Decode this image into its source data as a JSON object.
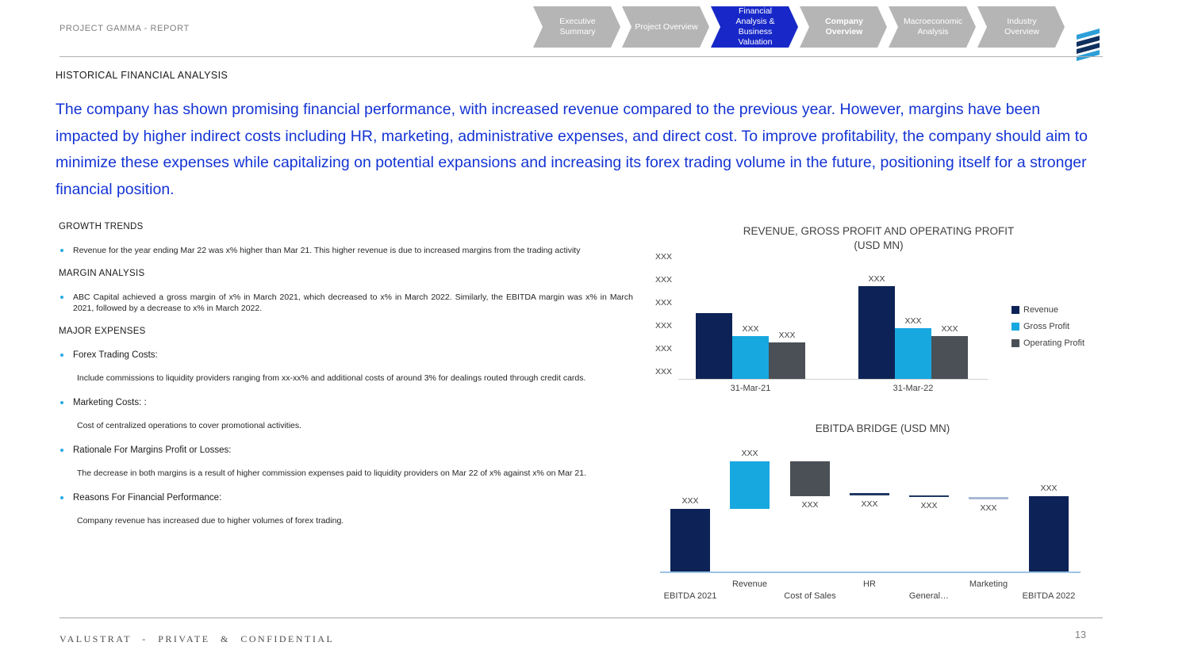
{
  "page": {
    "header_label": "PROJECT GAMMA - REPORT",
    "section_title": "HISTORICAL FINANCIAL ANALYSIS",
    "intro": "The company has shown promising financial performance, with increased revenue compared to the previous year. However, margins have been impacted by higher indirect costs including HR, marketing, administrative expenses, and direct cost. To improve profitability, the company should aim to minimize these expenses while capitalizing on potential expansions and increasing its forex trading volume in the future, positioning itself for a stronger financial position.",
    "footer": "VALUSTRAT - PRIVATE & CONFIDENTIAL",
    "page_number": "13"
  },
  "nav": {
    "active_color": "#1828c8",
    "inactive_color": "#b5b5b5",
    "items": [
      {
        "label": "Executive Summary",
        "active": false,
        "bold": false
      },
      {
        "label": "Project Overview",
        "active": false,
        "bold": false
      },
      {
        "label": "Financial Analysis & Business Valuation",
        "active": true,
        "bold": false
      },
      {
        "label": "Company Overview",
        "active": false,
        "bold": true
      },
      {
        "label": "Macroeconomic Analysis",
        "active": false,
        "bold": false
      },
      {
        "label": "Industry Overview",
        "active": false,
        "bold": false
      }
    ]
  },
  "logo": {
    "stripe_colors": [
      "#2d9fd8",
      "#10305f",
      "#10305f",
      "#2d9fd8"
    ]
  },
  "sections": [
    {
      "heading": "GROWTH TRENDS",
      "items": [
        {
          "title": "",
          "body": "Revenue for the year ending Mar 22 was x% higher than Mar 21. This higher revenue is due to increased margins from the trading activity"
        }
      ]
    },
    {
      "heading": "MARGIN ANALYSIS",
      "items": [
        {
          "title": "",
          "body": "ABC Capital achieved a gross margin of x% in March 2021, which decreased to x% in March 2022. Similarly, the EBITDA margin was x% in March 2021, followed by a decrease to x% in March 2022."
        }
      ]
    },
    {
      "heading": "MAJOR EXPENSES",
      "items": [
        {
          "title": "Forex Trading Costs:",
          "body": "Include commissions to liquidity providers ranging from xx-xx% and additional costs of around 3% for dealings routed through credit cards."
        },
        {
          "title": "Marketing Costs: :",
          "body": "Cost of centralized operations to cover promotional activities."
        },
        {
          "title": "Rationale For Margins Profit or Losses:",
          "body": "The decrease in both margins is a result of higher commission expenses paid to liquidity providers on Mar 22 of x% against x% on Mar 21."
        },
        {
          "title": "Reasons For Financial Performance:",
          "body": "Company revenue has increased due to higher volumes of forex trading."
        }
      ]
    }
  ],
  "chart_data": [
    {
      "type": "bar",
      "title": "REVENUE, GROSS PROFIT AND OPERATING PROFIT",
      "subtitle": "(USD MN)",
      "categories": [
        "31-Mar-21",
        "31-Mar-22"
      ],
      "series": [
        {
          "name": "Revenue",
          "color": "#0d2357",
          "values": [
            52,
            73
          ],
          "labels": [
            "",
            "XXX"
          ]
        },
        {
          "name": "Gross Profit",
          "color": "#18a8e0",
          "values": [
            34,
            40
          ],
          "labels": [
            "XXX",
            "XXX"
          ]
        },
        {
          "name": "Operating Profit",
          "color": "#4a5056",
          "values": [
            29,
            34
          ],
          "labels": [
            "XXX",
            "XXX"
          ]
        }
      ],
      "y_ticks": [
        "XXX",
        "XXX",
        "XXX",
        "XXX",
        "XXX",
        "XXX"
      ],
      "ylim_note": "axis values masked as XXX placeholders; values above are relative heights 0-100",
      "legend_position": "right",
      "grid": false
    },
    {
      "type": "waterfall",
      "title": "EBITDA BRIDGE (USD MN)",
      "baseline_color": "#9dc3e6",
      "bars": [
        {
          "category": "EBITDA 2021",
          "label": "XXX",
          "from": 0,
          "to": 46,
          "color": "#0d2357",
          "label_pos": "above",
          "row": 2
        },
        {
          "category": "Revenue",
          "label": "XXX",
          "from": 46,
          "to": 81,
          "color": "#18a8e0",
          "label_pos": "above",
          "row": 1
        },
        {
          "category": "Cost of Sales",
          "label": "XXX",
          "from": 55,
          "to": 81,
          "color": "#4a5056",
          "label_pos": "below",
          "row": 2
        },
        {
          "category": "HR",
          "label": "XXX",
          "from": 56,
          "to": 57.5,
          "color": "#1f3864",
          "label_pos": "below",
          "row": 1
        },
        {
          "category": "General…",
          "label": "XXX",
          "from": 54.5,
          "to": 56,
          "color": "#1f3864",
          "label_pos": "below",
          "row": 2
        },
        {
          "category": "Marketing",
          "label": "XXX",
          "from": 53,
          "to": 54.5,
          "color": "#a9b8d4",
          "label_pos": "below",
          "row": 1
        },
        {
          "category": "EBITDA 2022",
          "label": "XXX",
          "from": 0,
          "to": 55,
          "color": "#0d2357",
          "label_pos": "above",
          "row": 2
        }
      ],
      "values_note": "all data labels masked as XXX; from/to are relative heights 0-100 above baseline"
    }
  ]
}
